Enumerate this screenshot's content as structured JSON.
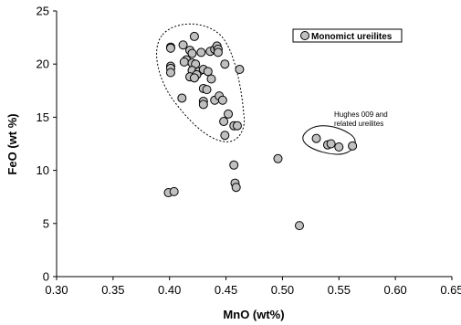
{
  "chart_data": {
    "type": "scatter",
    "xlabel": "MnO (wt%)",
    "ylabel": "FeO (wt %)",
    "xlim": [
      0.3,
      0.65
    ],
    "ylim": [
      0,
      25
    ],
    "x_ticks": [
      "0.30",
      "0.35",
      "0.40",
      "0.45",
      "0.50",
      "0.55",
      "0.60",
      "0.65"
    ],
    "y_ticks": [
      "0",
      "5",
      "10",
      "15",
      "20",
      "25"
    ],
    "grid": false,
    "legend_position": "top-right",
    "series": [
      {
        "name": "Monomict ureilites",
        "marker_fill": "#c0c0c0",
        "marker_stroke": "#000000",
        "points": [
          [
            0.401,
            21.6
          ],
          [
            0.401,
            21.5
          ],
          [
            0.401,
            19.8
          ],
          [
            0.401,
            19.6
          ],
          [
            0.401,
            19.2
          ],
          [
            0.412,
            21.8
          ],
          [
            0.418,
            21.3
          ],
          [
            0.42,
            21.0
          ],
          [
            0.422,
            22.6
          ],
          [
            0.415,
            20.4
          ],
          [
            0.413,
            20.2
          ],
          [
            0.42,
            20.1
          ],
          [
            0.423,
            20.0
          ],
          [
            0.42,
            19.4
          ],
          [
            0.426,
            19.3
          ],
          [
            0.424,
            19.0
          ],
          [
            0.418,
            18.8
          ],
          [
            0.422,
            18.7
          ],
          [
            0.43,
            19.5
          ],
          [
            0.434,
            19.3
          ],
          [
            0.436,
            21.2
          ],
          [
            0.44,
            21.4
          ],
          [
            0.442,
            21.7
          ],
          [
            0.443,
            21.4
          ],
          [
            0.443,
            21.1
          ],
          [
            0.428,
            21.1
          ],
          [
            0.449,
            20.0
          ],
          [
            0.437,
            18.6
          ],
          [
            0.43,
            17.7
          ],
          [
            0.433,
            17.6
          ],
          [
            0.411,
            16.8
          ],
          [
            0.43,
            16.5
          ],
          [
            0.43,
            16.2
          ],
          [
            0.44,
            16.6
          ],
          [
            0.444,
            17.0
          ],
          [
            0.447,
            16.6
          ],
          [
            0.452,
            15.3
          ],
          [
            0.448,
            14.6
          ],
          [
            0.457,
            14.2
          ],
          [
            0.46,
            14.2
          ],
          [
            0.462,
            19.5
          ],
          [
            0.449,
            13.3
          ],
          [
            0.457,
            10.5
          ],
          [
            0.458,
            8.8
          ],
          [
            0.459,
            8.4
          ],
          [
            0.399,
            7.9
          ],
          [
            0.404,
            8.0
          ],
          [
            0.496,
            11.1
          ],
          [
            0.515,
            4.8
          ]
        ]
      },
      {
        "name": "Hughes 009 and related ureilites",
        "marker_fill": "#c0c0c0",
        "marker_stroke": "#000000",
        "points": [
          [
            0.53,
            13.0
          ],
          [
            0.54,
            12.4
          ],
          [
            0.543,
            12.5
          ],
          [
            0.55,
            12.2
          ],
          [
            0.562,
            12.3
          ]
        ]
      }
    ],
    "legend": {
      "label": "Monomict ureilites"
    },
    "annotations": [
      {
        "text_line1": "Hughes 009 and",
        "text_line2": "related ureilites"
      }
    ]
  }
}
